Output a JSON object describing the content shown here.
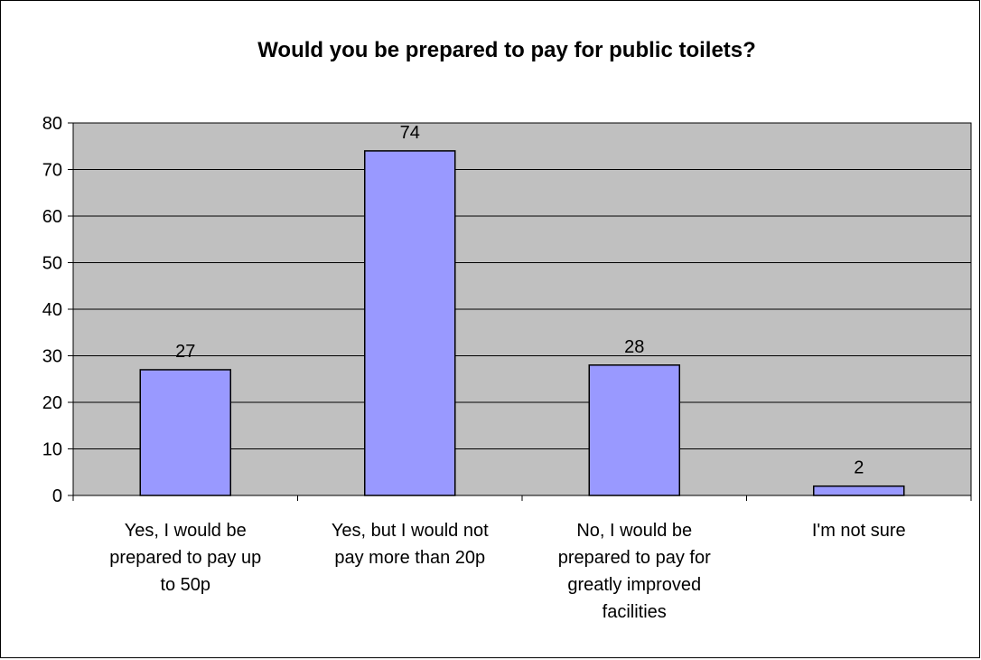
{
  "chart_data": {
    "type": "bar",
    "title": "Would you be prepared to pay for public toilets?",
    "xlabel": "",
    "ylabel": "",
    "categories": [
      [
        "Yes, I would be",
        "prepared to pay up",
        "to 50p"
      ],
      [
        "Yes, but I would not",
        "pay more than 20p"
      ],
      [
        "No, I would be",
        "prepared to pay for",
        "greatly improved",
        "facilities"
      ],
      [
        "I'm not sure"
      ]
    ],
    "values": [
      27,
      74,
      28,
      2
    ],
    "data_labels": [
      "27",
      "74",
      "28",
      "2"
    ],
    "ylim": [
      0,
      80
    ],
    "yticks": [
      0,
      10,
      20,
      30,
      40,
      50,
      60,
      70,
      80
    ],
    "grid": true,
    "legend": "none",
    "colors": {
      "bar_fill": "#9999ff",
      "bar_stroke": "#000000",
      "plot_background": "#c0c0c0",
      "gridline": "#000000",
      "text": "#000000"
    }
  }
}
